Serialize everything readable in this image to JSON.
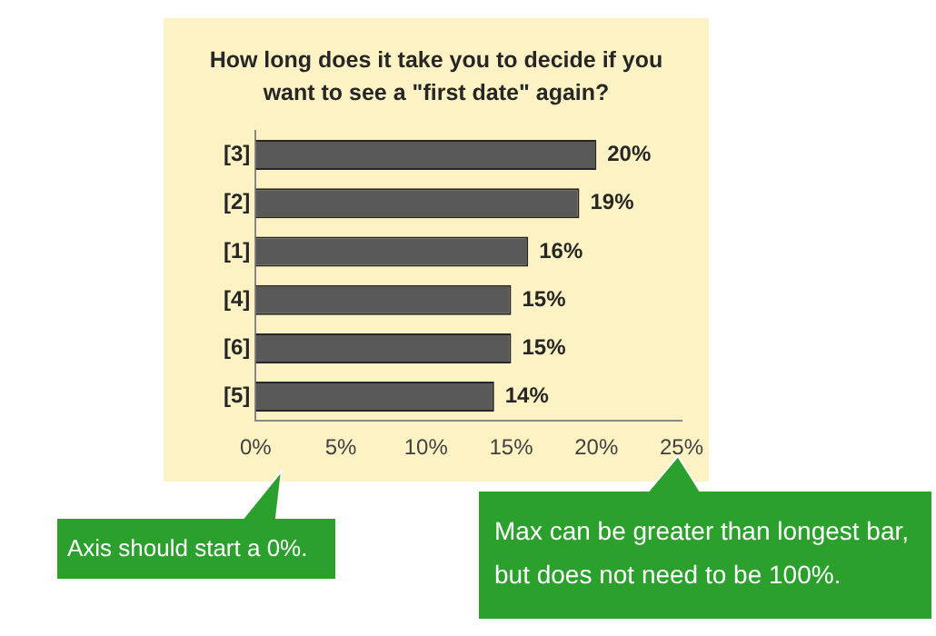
{
  "chart_data": {
    "type": "bar",
    "orientation": "horizontal",
    "title": "How long does it take you to decide if you want to see a \"first date\" again?",
    "categories": [
      "[3]",
      "[2]",
      "[1]",
      "[4]",
      "[6]",
      "[5]"
    ],
    "values": [
      20,
      19,
      16,
      15,
      15,
      14
    ],
    "value_labels": [
      "20%",
      "19%",
      "16%",
      "15%",
      "15%",
      "14%"
    ],
    "color": "#595959",
    "xlim": [
      0,
      25
    ],
    "xticks": [
      {
        "value": 0,
        "label": "0%"
      },
      {
        "value": 5,
        "label": "5%"
      },
      {
        "value": 10,
        "label": "10%"
      },
      {
        "value": 15,
        "label": "15%"
      },
      {
        "value": 20,
        "label": "20%"
      },
      {
        "value": 25,
        "label": "25%"
      }
    ],
    "grid": false,
    "legend": false,
    "annotations": [
      "Axis should start a 0%.",
      "Max can be greater than longest bar, but does not need to be 100%."
    ]
  }
}
